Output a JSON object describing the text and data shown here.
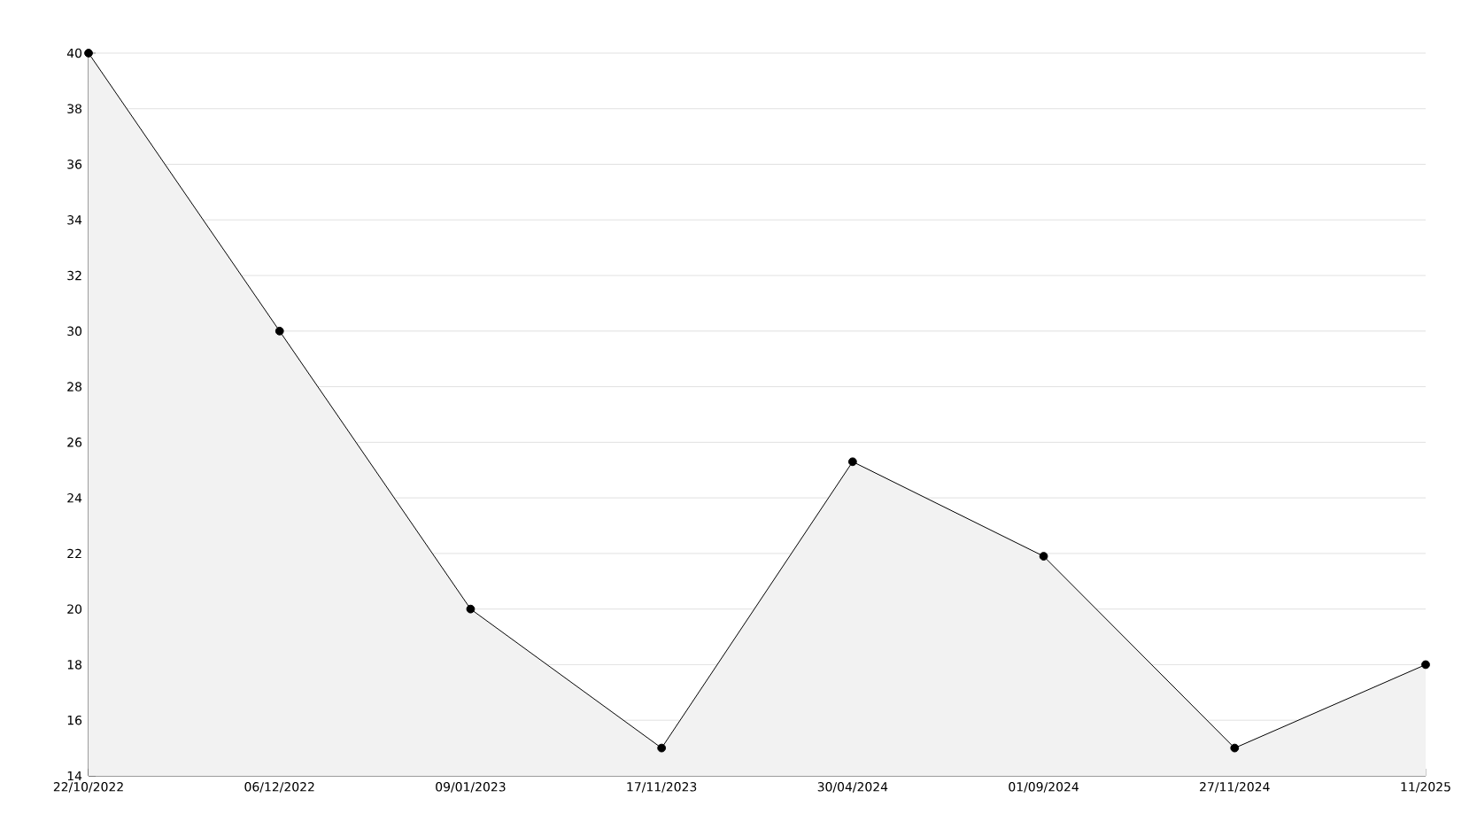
{
  "chart_data": {
    "type": "area",
    "categories": [
      "22/10/2022",
      "06/12/2022",
      "09/01/2023",
      "17/11/2023",
      "30/04/2024",
      "01/09/2024",
      "27/11/2024",
      "11/2025"
    ],
    "series": [
      {
        "color": "#000000",
        "values": [
          40,
          30,
          20,
          15,
          25.3,
          21.9,
          15,
          18
        ]
      }
    ],
    "ylim": [
      14,
      40
    ],
    "yticks": [
      14,
      16,
      18,
      20,
      22,
      24,
      26,
      28,
      30,
      32,
      34,
      36,
      38,
      40
    ],
    "grid": "y",
    "marker": "circle",
    "line_style": "solid"
  }
}
